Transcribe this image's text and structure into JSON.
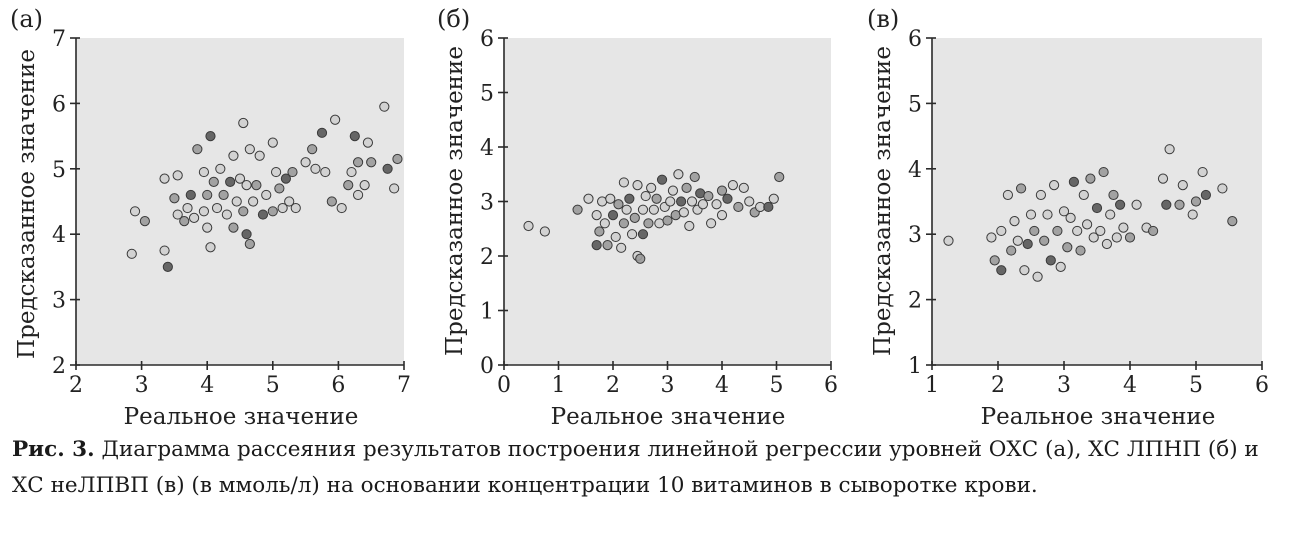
{
  "chart_data": [
    {
      "type": "scatter",
      "panel_label": "(а)",
      "xlabel": "Реальное значение",
      "ylabel": "Предсказанное значение",
      "xlim": [
        2,
        7
      ],
      "ylim": [
        2,
        7
      ],
      "xticks": [
        2,
        3,
        4,
        5,
        6,
        7
      ],
      "yticks": [
        2,
        3,
        4,
        5,
        6,
        7
      ],
      "points": [
        [
          2.85,
          3.7
        ],
        [
          2.9,
          4.35
        ],
        [
          3.05,
          4.2
        ],
        [
          3.35,
          3.75
        ],
        [
          3.4,
          3.5
        ],
        [
          3.35,
          4.85
        ],
        [
          3.5,
          4.55
        ],
        [
          3.55,
          4.3
        ],
        [
          3.55,
          4.9
        ],
        [
          3.65,
          4.2
        ],
        [
          3.7,
          4.4
        ],
        [
          3.75,
          4.6
        ],
        [
          3.8,
          4.25
        ],
        [
          3.85,
          5.3
        ],
        [
          3.95,
          4.95
        ],
        [
          3.95,
          4.35
        ],
        [
          4.0,
          4.6
        ],
        [
          4.0,
          4.1
        ],
        [
          4.05,
          5.5
        ],
        [
          4.05,
          3.8
        ],
        [
          4.1,
          4.8
        ],
        [
          4.15,
          4.4
        ],
        [
          4.2,
          5.0
        ],
        [
          4.25,
          4.6
        ],
        [
          4.3,
          4.3
        ],
        [
          4.35,
          4.8
        ],
        [
          4.4,
          5.2
        ],
        [
          4.4,
          4.1
        ],
        [
          4.45,
          4.5
        ],
        [
          4.5,
          4.85
        ],
        [
          4.55,
          4.35
        ],
        [
          4.55,
          5.7
        ],
        [
          4.6,
          4.0
        ],
        [
          4.6,
          4.75
        ],
        [
          4.65,
          3.85
        ],
        [
          4.65,
          5.3
        ],
        [
          4.7,
          4.5
        ],
        [
          4.75,
          4.75
        ],
        [
          4.8,
          5.2
        ],
        [
          4.85,
          4.3
        ],
        [
          4.9,
          4.6
        ],
        [
          5.0,
          4.35
        ],
        [
          5.0,
          5.4
        ],
        [
          5.05,
          4.95
        ],
        [
          5.1,
          4.7
        ],
        [
          5.15,
          4.4
        ],
        [
          5.2,
          4.85
        ],
        [
          5.25,
          4.5
        ],
        [
          5.3,
          4.95
        ],
        [
          5.35,
          4.4
        ],
        [
          5.5,
          5.1
        ],
        [
          5.6,
          5.3
        ],
        [
          5.65,
          5.0
        ],
        [
          5.75,
          5.55
        ],
        [
          5.8,
          4.95
        ],
        [
          5.9,
          4.5
        ],
        [
          5.95,
          5.75
        ],
        [
          6.05,
          4.4
        ],
        [
          6.15,
          4.75
        ],
        [
          6.2,
          4.95
        ],
        [
          6.25,
          5.5
        ],
        [
          6.3,
          4.6
        ],
        [
          6.3,
          5.1
        ],
        [
          6.4,
          4.75
        ],
        [
          6.45,
          5.4
        ],
        [
          6.5,
          5.1
        ],
        [
          6.7,
          5.95
        ],
        [
          6.75,
          5.0
        ],
        [
          6.85,
          4.7
        ],
        [
          6.9,
          5.15
        ]
      ]
    },
    {
      "type": "scatter",
      "panel_label": "(б)",
      "xlabel": "Реальное значение",
      "ylabel": "Предсказанное значение",
      "xlim": [
        0,
        6
      ],
      "ylim": [
        0,
        6
      ],
      "xticks": [
        0,
        1,
        2,
        3,
        4,
        5,
        6
      ],
      "yticks": [
        0,
        1,
        2,
        3,
        4,
        5,
        6
      ],
      "points": [
        [
          0.45,
          2.55
        ],
        [
          0.75,
          2.45
        ],
        [
          1.35,
          2.85
        ],
        [
          1.55,
          3.05
        ],
        [
          1.7,
          2.2
        ],
        [
          1.7,
          2.75
        ],
        [
          1.75,
          2.45
        ],
        [
          1.8,
          3.0
        ],
        [
          1.85,
          2.6
        ],
        [
          1.9,
          2.2
        ],
        [
          1.95,
          3.05
        ],
        [
          2.0,
          2.75
        ],
        [
          2.05,
          2.35
        ],
        [
          2.1,
          2.95
        ],
        [
          2.15,
          2.15
        ],
        [
          2.2,
          3.35
        ],
        [
          2.2,
          2.6
        ],
        [
          2.25,
          2.85
        ],
        [
          2.3,
          3.05
        ],
        [
          2.35,
          2.4
        ],
        [
          2.4,
          2.7
        ],
        [
          2.45,
          3.3
        ],
        [
          2.45,
          2.0
        ],
        [
          2.5,
          1.95
        ],
        [
          2.55,
          2.85
        ],
        [
          2.55,
          2.4
        ],
        [
          2.6,
          3.1
        ],
        [
          2.65,
          2.6
        ],
        [
          2.7,
          3.25
        ],
        [
          2.75,
          2.85
        ],
        [
          2.8,
          3.05
        ],
        [
          2.85,
          2.6
        ],
        [
          2.9,
          3.4
        ],
        [
          2.95,
          2.9
        ],
        [
          3.0,
          2.65
        ],
        [
          3.05,
          3.0
        ],
        [
          3.1,
          3.2
        ],
        [
          3.15,
          2.75
        ],
        [
          3.2,
          3.5
        ],
        [
          3.25,
          3.0
        ],
        [
          3.3,
          2.8
        ],
        [
          3.35,
          3.25
        ],
        [
          3.4,
          2.55
        ],
        [
          3.45,
          3.0
        ],
        [
          3.5,
          3.45
        ],
        [
          3.55,
          2.85
        ],
        [
          3.6,
          3.15
        ],
        [
          3.65,
          2.95
        ],
        [
          3.75,
          3.1
        ],
        [
          3.8,
          2.6
        ],
        [
          3.9,
          2.95
        ],
        [
          4.0,
          3.2
        ],
        [
          4.0,
          2.75
        ],
        [
          4.1,
          3.05
        ],
        [
          4.2,
          3.3
        ],
        [
          4.3,
          2.9
        ],
        [
          4.4,
          3.25
        ],
        [
          4.5,
          3.0
        ],
        [
          4.6,
          2.8
        ],
        [
          4.7,
          2.9
        ],
        [
          4.85,
          2.9
        ],
        [
          4.95,
          3.05
        ],
        [
          5.05,
          3.45
        ]
      ]
    },
    {
      "type": "scatter",
      "panel_label": "(в)",
      "xlabel": "Реальное значение",
      "ylabel": "Предсказанное значение",
      "xlim": [
        1,
        6
      ],
      "ylim": [
        1,
        6
      ],
      "xticks": [
        1,
        2,
        3,
        4,
        5,
        6
      ],
      "yticks": [
        1,
        2,
        3,
        4,
        5,
        6
      ],
      "points": [
        [
          1.25,
          2.9
        ],
        [
          1.9,
          2.95
        ],
        [
          1.95,
          2.6
        ],
        [
          2.05,
          3.05
        ],
        [
          2.05,
          2.45
        ],
        [
          2.15,
          3.6
        ],
        [
          2.2,
          2.75
        ],
        [
          2.25,
          3.2
        ],
        [
          2.3,
          2.9
        ],
        [
          2.35,
          3.7
        ],
        [
          2.4,
          2.45
        ],
        [
          2.45,
          2.85
        ],
        [
          2.5,
          3.3
        ],
        [
          2.55,
          3.05
        ],
        [
          2.6,
          2.35
        ],
        [
          2.65,
          3.6
        ],
        [
          2.7,
          2.9
        ],
        [
          2.75,
          3.3
        ],
        [
          2.8,
          2.6
        ],
        [
          2.85,
          3.75
        ],
        [
          2.9,
          3.05
        ],
        [
          2.95,
          2.5
        ],
        [
          3.0,
          3.35
        ],
        [
          3.05,
          2.8
        ],
        [
          3.1,
          3.25
        ],
        [
          3.15,
          3.8
        ],
        [
          3.2,
          3.05
        ],
        [
          3.25,
          2.75
        ],
        [
          3.3,
          3.6
        ],
        [
          3.35,
          3.15
        ],
        [
          3.4,
          3.85
        ],
        [
          3.45,
          2.95
        ],
        [
          3.5,
          3.4
        ],
        [
          3.55,
          3.05
        ],
        [
          3.6,
          3.95
        ],
        [
          3.65,
          2.85
        ],
        [
          3.7,
          3.3
        ],
        [
          3.75,
          3.6
        ],
        [
          3.8,
          2.95
        ],
        [
          3.85,
          3.45
        ],
        [
          3.9,
          3.1
        ],
        [
          4.0,
          2.95
        ],
        [
          4.1,
          3.45
        ],
        [
          4.25,
          3.1
        ],
        [
          4.35,
          3.05
        ],
        [
          4.5,
          3.85
        ],
        [
          4.55,
          3.45
        ],
        [
          4.6,
          4.3
        ],
        [
          4.75,
          3.45
        ],
        [
          4.8,
          3.75
        ],
        [
          4.95,
          3.3
        ],
        [
          5.0,
          3.5
        ],
        [
          5.1,
          3.95
        ],
        [
          5.15,
          3.6
        ],
        [
          5.4,
          3.7
        ],
        [
          5.55,
          3.2
        ]
      ]
    }
  ],
  "caption": {
    "figure_label": "Рис. 3.",
    "text": "Диаграмма рассеяния результатов построения линейной регрессии уровней ОХС (а), ХС ЛПНП (б) и ХС неЛПВП (в) (в ммоль/л) на основании концентрации 10 витаминов в сыворотке крови."
  },
  "colors": {
    "plot_background": "#e6e6e6",
    "marker_light": "#cfcfcf",
    "marker_mid": "#9a9a9a",
    "marker_dark": "#585858",
    "marker_edge": "#3a3a3a",
    "axis": "#2a2a2a"
  }
}
